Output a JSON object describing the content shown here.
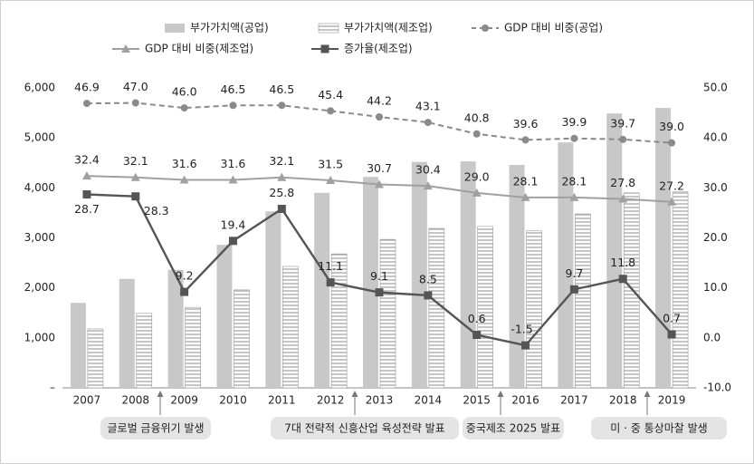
{
  "chart_data": {
    "type": "bar-line",
    "categories": [
      "2007",
      "2008",
      "2009",
      "2010",
      "2011",
      "2012",
      "2013",
      "2014",
      "2015",
      "2016",
      "2017",
      "2018",
      "2019"
    ],
    "series": [
      {
        "name": "부가가치액(공업)",
        "kind": "bar",
        "color": "#c8c8c8",
        "values": [
          1700,
          2180,
          2360,
          2860,
          3530,
          3900,
          4220,
          4520,
          4530,
          4460,
          4910,
          5490,
          5600
        ]
      },
      {
        "name": "부가가치액(제조업)",
        "kind": "bar-striped",
        "color": "#9a9a9a",
        "values": [
          1180,
          1490,
          1610,
          1960,
          2430,
          2680,
          2970,
          3190,
          3230,
          3140,
          3480,
          3900,
          3920
        ]
      },
      {
        "name": "GDP 대비 비중(공업)",
        "kind": "line-dashed-circle",
        "axis": "y2",
        "color": "#8a8a8a",
        "values": [
          46.9,
          47.0,
          46.0,
          46.5,
          46.5,
          45.4,
          44.2,
          43.1,
          40.8,
          39.6,
          39.9,
          39.7,
          39.0
        ],
        "value_labels": [
          "46.9",
          "47.0",
          "46.0",
          "46.5",
          "46.5",
          "45.4",
          "44.2",
          "43.1",
          "40.8",
          "39.6",
          "39.9",
          "39.7",
          "39.0"
        ]
      },
      {
        "name": "GDP 대비 비중(제조업)",
        "kind": "line-triangle",
        "axis": "y2",
        "color": "#a0a0a0",
        "values": [
          32.4,
          32.1,
          31.6,
          31.6,
          32.1,
          31.5,
          30.7,
          30.4,
          29.0,
          28.1,
          28.1,
          27.8,
          27.2
        ],
        "value_labels": [
          "32.4",
          "32.1",
          "31.6",
          "31.6",
          "32.1",
          "31.5",
          "30.7",
          "30.4",
          "29.0",
          "28.1",
          "28.1",
          "27.8",
          "27.2"
        ]
      },
      {
        "name": "증가율(제조업)",
        "kind": "line-square",
        "axis": "y2",
        "color": "#555555",
        "values": [
          28.7,
          28.3,
          9.2,
          19.4,
          25.8,
          11.1,
          9.1,
          8.5,
          0.6,
          -1.5,
          9.7,
          11.8,
          0.7
        ]
      }
    ],
    "ylim": [
      0,
      6000
    ],
    "yticks": [
      {
        "value": 0,
        "label": "–"
      },
      {
        "value": 1000,
        "label": "1,000"
      },
      {
        "value": 2000,
        "label": "2,000"
      },
      {
        "value": 3000,
        "label": "3,000"
      },
      {
        "value": 4000,
        "label": "4,000"
      },
      {
        "value": 5000,
        "label": "5,000"
      },
      {
        "value": 6000,
        "label": "6,000"
      }
    ],
    "y2lim": [
      -10,
      50
    ],
    "y2ticks": [
      {
        "value": -10,
        "label": "-10.0"
      },
      {
        "value": 0,
        "label": "0.0"
      },
      {
        "value": 10,
        "label": "10.0"
      },
      {
        "value": 20,
        "label": "20.0"
      },
      {
        "value": 30,
        "label": "30.0"
      },
      {
        "value": 40,
        "label": "40.0"
      },
      {
        "value": 50,
        "label": "50.0"
      }
    ],
    "annotations": [
      "글로벌 금융위기 발생",
      "7대 전략적 신흥산업 육성전략 발표",
      "중국제조 2025 발표",
      "미 · 중 통상마찰 발생"
    ]
  }
}
